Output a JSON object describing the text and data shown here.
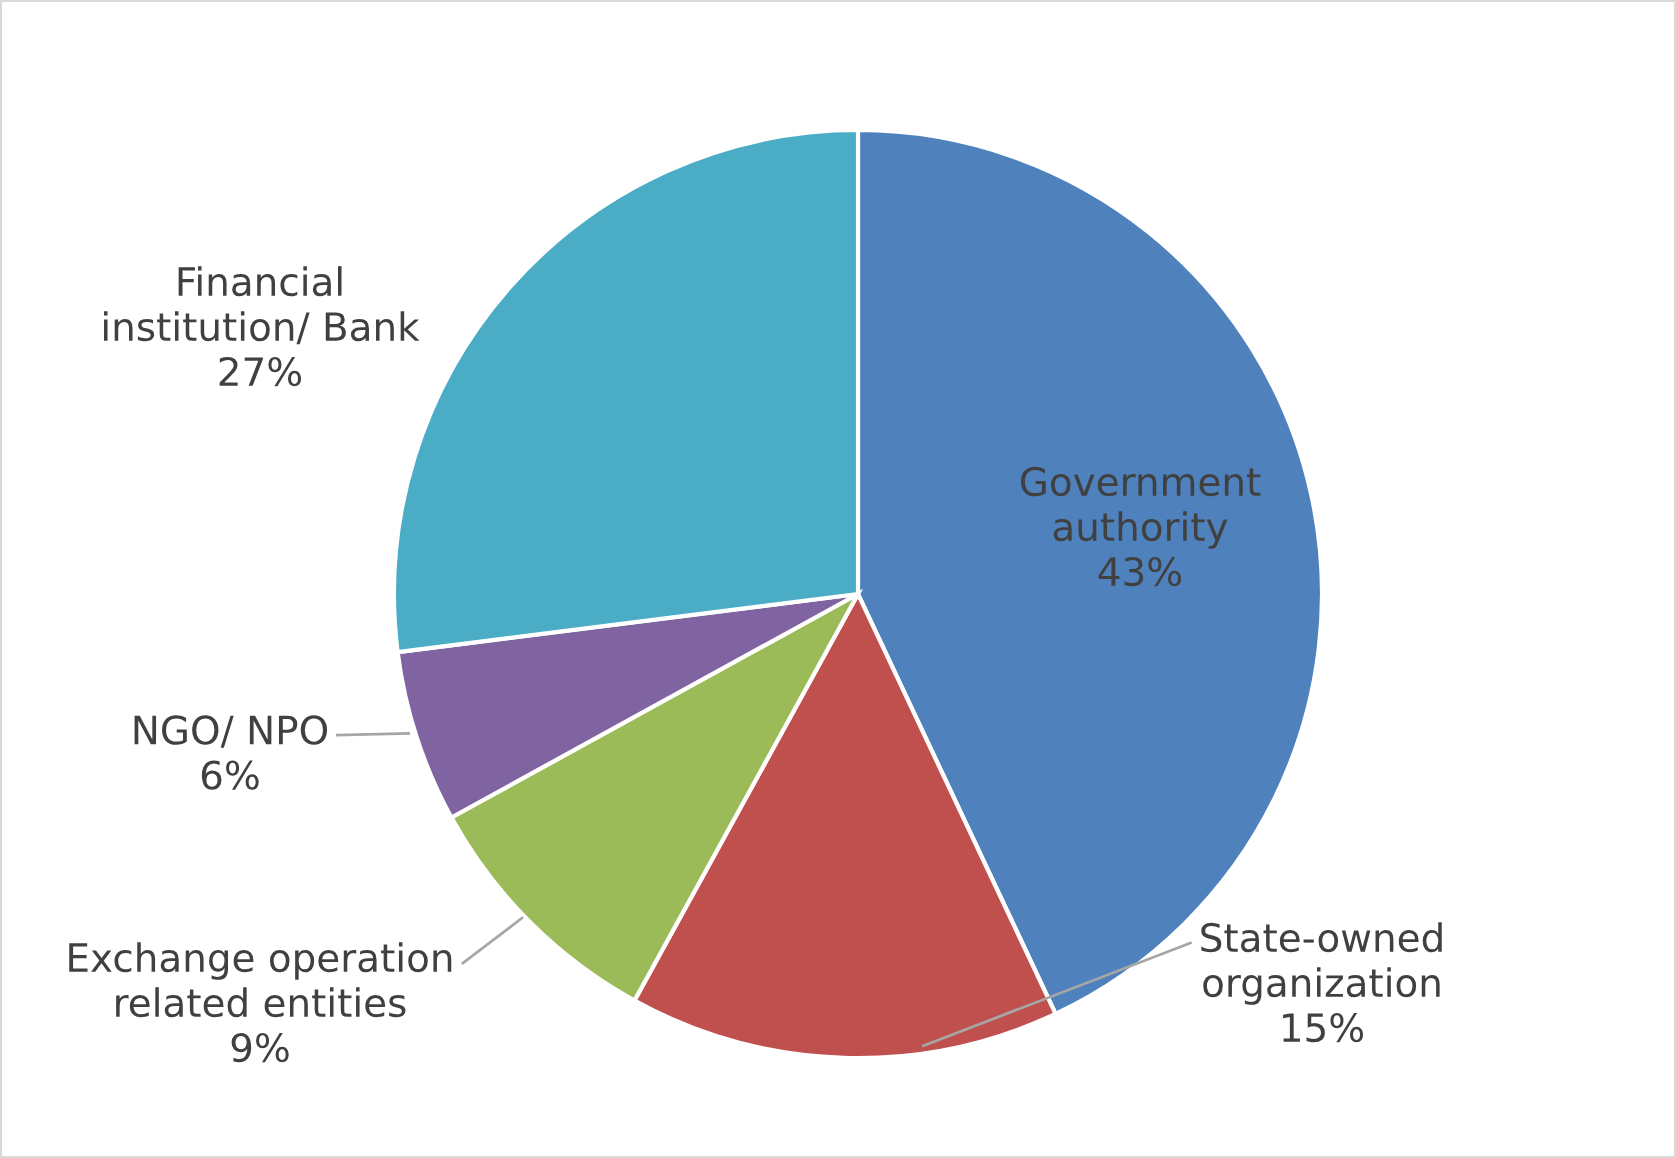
{
  "chart_data": {
    "type": "pie",
    "categories": [
      "Government\nauthority",
      "State-owned\norganization",
      "Exchange operation\nrelated entities",
      "NGO/ NPO",
      "Financial\ninstitution/ Bank"
    ],
    "values": [
      43,
      15,
      9,
      6,
      27
    ],
    "value_labels": [
      "43%",
      "15%",
      "9%",
      "6%",
      "27%"
    ],
    "colors": [
      "#4f81bd",
      "#c0504d",
      "#9bbb59",
      "#8064a2",
      "#4bacc6"
    ],
    "legend": false
  }
}
